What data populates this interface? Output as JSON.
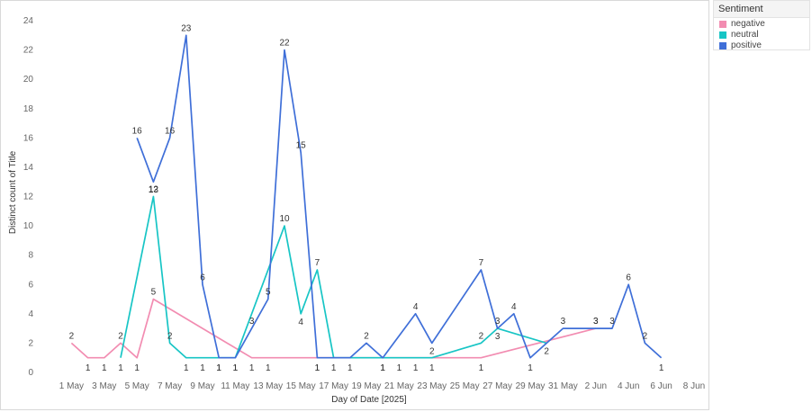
{
  "chart_data": {
    "type": "line",
    "xlabel": "Day of Date [2025]",
    "ylabel": "Distinct count of Title",
    "ylim": [
      0,
      24
    ],
    "yticks": [
      0,
      2,
      4,
      6,
      8,
      10,
      12,
      14,
      16,
      18,
      20,
      22,
      24
    ],
    "xlim": [
      "2025-04-29",
      "2025-06-08"
    ],
    "xticks": [
      {
        "date": "2025-05-01",
        "label": "1 May"
      },
      {
        "date": "2025-05-03",
        "label": "3 May"
      },
      {
        "date": "2025-05-05",
        "label": "5 May"
      },
      {
        "date": "2025-05-07",
        "label": "7 May"
      },
      {
        "date": "2025-05-09",
        "label": "9 May"
      },
      {
        "date": "2025-05-11",
        "label": "11 May"
      },
      {
        "date": "2025-05-13",
        "label": "13 May"
      },
      {
        "date": "2025-05-15",
        "label": "15 May"
      },
      {
        "date": "2025-05-17",
        "label": "17 May"
      },
      {
        "date": "2025-05-19",
        "label": "19 May"
      },
      {
        "date": "2025-05-21",
        "label": "21 May"
      },
      {
        "date": "2025-05-23",
        "label": "23 May"
      },
      {
        "date": "2025-05-25",
        "label": "25 May"
      },
      {
        "date": "2025-05-27",
        "label": "27 May"
      },
      {
        "date": "2025-05-29",
        "label": "29 May"
      },
      {
        "date": "2025-05-31",
        "label": "31 May"
      },
      {
        "date": "2025-06-02",
        "label": "2 Jun"
      },
      {
        "date": "2025-06-04",
        "label": "4 Jun"
      },
      {
        "date": "2025-06-06",
        "label": "6 Jun"
      },
      {
        "date": "2025-06-08",
        "label": "8 Jun"
      }
    ],
    "grid": false,
    "legend": {
      "title": "Sentiment",
      "placement": "right"
    },
    "series": [
      {
        "name": "negative",
        "color": "#f28cb1",
        "points": [
          {
            "x": "2025-05-01",
            "y": 2
          },
          {
            "x": "2025-05-02",
            "y": 1
          },
          {
            "x": "2025-05-03",
            "y": 1
          },
          {
            "x": "2025-05-04",
            "y": 2
          },
          {
            "x": "2025-05-05",
            "y": 1
          },
          {
            "x": "2025-05-06",
            "y": 5
          },
          {
            "x": "2025-05-12",
            "y": 1
          },
          {
            "x": "2025-05-13",
            "y": 1
          },
          {
            "x": "2025-05-16",
            "y": 1
          },
          {
            "x": "2025-05-20",
            "y": 1
          },
          {
            "x": "2025-05-21",
            "y": 1
          },
          {
            "x": "2025-05-22",
            "y": 1
          },
          {
            "x": "2025-05-26",
            "y": 1
          },
          {
            "x": "2025-06-02",
            "y": 3
          }
        ]
      },
      {
        "name": "neutral",
        "color": "#17c5c5",
        "points": [
          {
            "x": "2025-05-04",
            "y": 1
          },
          {
            "x": "2025-05-06",
            "y": 12
          },
          {
            "x": "2025-05-07",
            "y": 2
          },
          {
            "x": "2025-05-08",
            "y": 1
          },
          {
            "x": "2025-05-09",
            "y": 1
          },
          {
            "x": "2025-05-10",
            "y": 1
          },
          {
            "x": "2025-05-11",
            "y": 1
          },
          {
            "x": "2025-05-14",
            "y": 10
          },
          {
            "x": "2025-05-15",
            "y": 4
          },
          {
            "x": "2025-05-16",
            "y": 7
          },
          {
            "x": "2025-05-17",
            "y": 1
          },
          {
            "x": "2025-05-23",
            "y": 1
          },
          {
            "x": "2025-05-26",
            "y": 2
          },
          {
            "x": "2025-05-27",
            "y": 3
          },
          {
            "x": "2025-05-30",
            "y": 2
          }
        ]
      },
      {
        "name": "positive",
        "color": "#3f6fd8",
        "points": [
          {
            "x": "2025-05-05",
            "y": 16
          },
          {
            "x": "2025-05-06",
            "y": 13
          },
          {
            "x": "2025-05-07",
            "y": 16
          },
          {
            "x": "2025-05-08",
            "y": 23
          },
          {
            "x": "2025-05-09",
            "y": 6
          },
          {
            "x": "2025-05-10",
            "y": 1
          },
          {
            "x": "2025-05-11",
            "y": 1
          },
          {
            "x": "2025-05-12",
            "y": 3
          },
          {
            "x": "2025-05-13",
            "y": 5
          },
          {
            "x": "2025-05-14",
            "y": 22
          },
          {
            "x": "2025-05-15",
            "y": 15
          },
          {
            "x": "2025-05-16",
            "y": 1
          },
          {
            "x": "2025-05-18",
            "y": 1
          },
          {
            "x": "2025-05-19",
            "y": 2
          },
          {
            "x": "2025-05-20",
            "y": 1
          },
          {
            "x": "2025-05-22",
            "y": 4
          },
          {
            "x": "2025-05-23",
            "y": 2
          },
          {
            "x": "2025-05-26",
            "y": 7
          },
          {
            "x": "2025-05-27",
            "y": 3
          },
          {
            "x": "2025-05-28",
            "y": 4
          },
          {
            "x": "2025-05-29",
            "y": 1
          },
          {
            "x": "2025-05-31",
            "y": 3
          },
          {
            "x": "2025-06-02",
            "y": 3
          },
          {
            "x": "2025-06-03",
            "y": 3
          },
          {
            "x": "2025-06-04",
            "y": 6
          },
          {
            "x": "2025-06-05",
            "y": 2
          },
          {
            "x": "2025-06-06",
            "y": 1
          }
        ]
      }
    ]
  }
}
